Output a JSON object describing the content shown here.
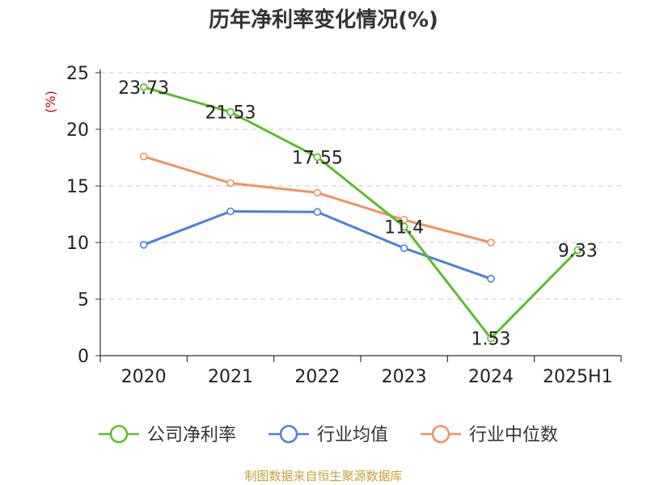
{
  "chart_data": {
    "type": "line",
    "title": "历年净利率变化情况(%)",
    "ylabel": "(%)",
    "ylim": [
      0,
      25
    ],
    "yticks": [
      0,
      5,
      10,
      15,
      20,
      25
    ],
    "grid": "horizontal dashed",
    "legend_position": "bottom",
    "categories": [
      "2020",
      "2021",
      "2022",
      "2023",
      "2024",
      "2025H1"
    ],
    "series": [
      {
        "name": "公司净利率",
        "color": "#5cbd28",
        "values": [
          23.73,
          21.53,
          17.55,
          11.4,
          1.53,
          9.33
        ],
        "labels": [
          "23.73",
          "21.53",
          "17.55",
          "11.4",
          "1.53",
          "9.33"
        ]
      },
      {
        "name": "行业均值",
        "color": "#4d7ede",
        "values": [
          9.8,
          12.75,
          12.7,
          9.5,
          6.8,
          null
        ]
      },
      {
        "name": "行业中位数",
        "color": "#f39160",
        "values": [
          17.6,
          15.25,
          14.4,
          12.0,
          10.0,
          null
        ]
      }
    ]
  },
  "footer": {
    "source": "制图数据来自恒生聚源数据库",
    "color": "#c9a03c"
  },
  "style": {
    "ylabel_color": "#d40000",
    "grid_color": "#c8c8c8",
    "axis_color": "#333333",
    "text_color": "#222222"
  }
}
